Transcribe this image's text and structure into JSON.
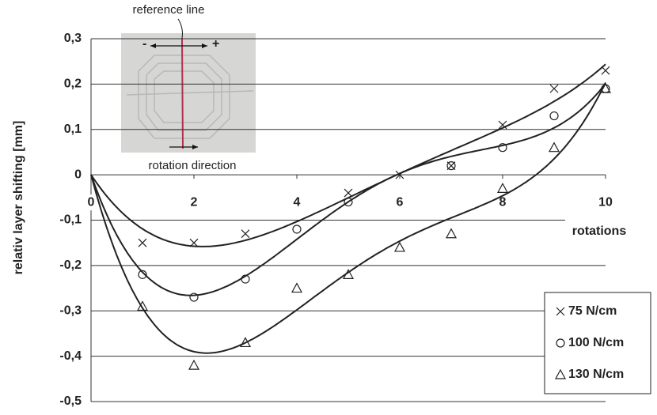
{
  "chart_data": {
    "type": "scatter",
    "y_label": "relativ layer shifting [mm]",
    "x_label": "rotations",
    "x": [
      1,
      2,
      3,
      4,
      5,
      6,
      7,
      8,
      9,
      10
    ],
    "series": [
      {
        "name": "75 N/cm",
        "marker": "x",
        "color": "#222222",
        "values": [
          -0.15,
          -0.15,
          -0.13,
          null,
          -0.04,
          0,
          0.02,
          0.11,
          0.19,
          0.23
        ]
      },
      {
        "name": "100 N/cm",
        "marker": "o",
        "color": "#222222",
        "values": [
          -0.22,
          -0.27,
          -0.23,
          -0.12,
          -0.06,
          null,
          0.02,
          0.06,
          0.13,
          0.19
        ]
      },
      {
        "name": "130 N/cm",
        "marker": "triangle",
        "color": "#222222",
        "values": [
          -0.29,
          -0.42,
          -0.37,
          -0.25,
          -0.22,
          -0.16,
          -0.13,
          -0.03,
          0.06,
          0.19
        ]
      }
    ],
    "xlim": [
      0,
      10
    ],
    "xticks": [
      0,
      2,
      4,
      6,
      8,
      10
    ],
    "ylim": [
      -0.5,
      0.3
    ],
    "yticks": [
      {
        "value": -0.5,
        "label": "-0,5"
      },
      {
        "value": -0.4,
        "label": "-0,4"
      },
      {
        "value": -0.3,
        "label": "-0,3"
      },
      {
        "value": -0.2,
        "label": "-0,2"
      },
      {
        "value": -0.1,
        "label": "-0,1"
      },
      0,
      {
        "value": 0.1,
        "label": "0,1"
      },
      {
        "value": 0.2,
        "label": "0,2"
      },
      {
        "value": 0.3,
        "label": "0,3"
      }
    ],
    "grid": true,
    "trendline": true,
    "annotations": {
      "reference_line": "reference line",
      "rotation_direction": "rotation direction",
      "minus": "-",
      "plus": "+"
    }
  }
}
